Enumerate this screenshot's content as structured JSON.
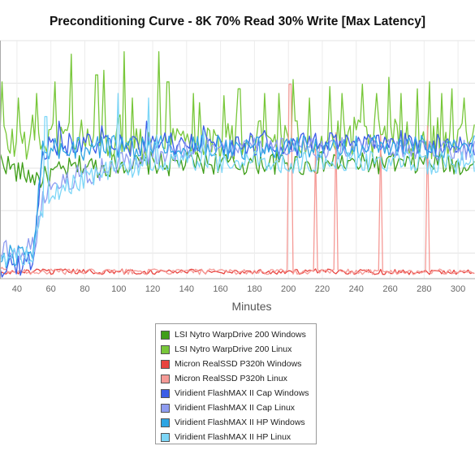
{
  "chart_data": {
    "type": "line",
    "title": "Preconditioning Curve - 8K 70% Read 30% Write [Max Latency]",
    "xlabel": "Minutes",
    "ylabel": "",
    "xlim": [
      30,
      310
    ],
    "x_ticks": [
      "40",
      "60",
      "80",
      "100",
      "120",
      "140",
      "160",
      "180",
      "200",
      "220",
      "240",
      "260",
      "280",
      "300"
    ],
    "grid": true,
    "legend_position": "bottom-center",
    "series": [
      {
        "name": "LSI Nytro WarpDrive 200 Windows",
        "color": "#3f9e18",
        "x": [
          30,
          40,
          50,
          55,
          60,
          70,
          80,
          90,
          100,
          110,
          120,
          130,
          140,
          150,
          160,
          170,
          180,
          190,
          200,
          210,
          220,
          230,
          240,
          250,
          260,
          270,
          280,
          290,
          300,
          308
        ],
        "values": [
          0.52,
          0.46,
          0.44,
          0.43,
          0.45,
          0.47,
          0.49,
          0.48,
          0.5,
          0.49,
          0.5,
          0.49,
          0.5,
          0.5,
          0.5,
          0.49,
          0.5,
          0.5,
          0.5,
          0.49,
          0.5,
          0.5,
          0.49,
          0.5,
          0.5,
          0.49,
          0.5,
          0.5,
          0.49,
          0.5
        ]
      },
      {
        "name": "LSI Nytro WarpDrive 200 Linux",
        "color": "#78c73a",
        "x": [
          30,
          40,
          50,
          55,
          60,
          70,
          80,
          90,
          100,
          110,
          120,
          130,
          140,
          150,
          160,
          170,
          180,
          190,
          200,
          210,
          220,
          230,
          240,
          250,
          260,
          270,
          280,
          290,
          300,
          308
        ],
        "values": [
          0.6,
          0.58,
          0.62,
          0.6,
          0.6,
          0.62,
          0.61,
          0.6,
          0.62,
          0.61,
          0.6,
          0.61,
          0.6,
          0.61,
          0.6,
          0.6,
          0.61,
          0.6,
          0.6,
          0.61,
          0.6,
          0.6,
          0.61,
          0.6,
          0.6,
          0.61,
          0.6,
          0.61,
          0.6,
          0.6
        ]
      },
      {
        "name": "Micron RealSSD P320h Windows",
        "color": "#e8433e",
        "x": [
          30,
          40,
          50,
          55,
          60,
          70,
          80,
          90,
          100,
          110,
          120,
          130,
          140,
          150,
          160,
          170,
          180,
          190,
          200,
          210,
          220,
          230,
          240,
          250,
          260,
          270,
          280,
          290,
          300,
          308
        ],
        "values": [
          0.02,
          0.03,
          0.03,
          0.03,
          0.03,
          0.03,
          0.03,
          0.03,
          0.03,
          0.03,
          0.03,
          0.03,
          0.03,
          0.03,
          0.03,
          0.03,
          0.03,
          0.03,
          0.03,
          0.03,
          0.03,
          0.03,
          0.03,
          0.03,
          0.03,
          0.03,
          0.03,
          0.03,
          0.03,
          0.03
        ]
      },
      {
        "name": "Micron RealSSD P320h Linux",
        "color": "#f59a96",
        "x": [
          30,
          40,
          50,
          55,
          60,
          70,
          80,
          90,
          100,
          110,
          120,
          130,
          140,
          150,
          160,
          170,
          180,
          190,
          200,
          210,
          220,
          230,
          240,
          250,
          260,
          270,
          280,
          290,
          300,
          308
        ],
        "values": [
          0.04,
          0.03,
          0.03,
          0.03,
          0.03,
          0.03,
          0.03,
          0.03,
          0.03,
          0.03,
          0.03,
          0.03,
          0.03,
          0.03,
          0.03,
          0.03,
          0.03,
          0.03,
          0.03,
          0.03,
          0.03,
          0.03,
          0.03,
          0.03,
          0.03,
          0.03,
          0.03,
          0.03,
          0.03,
          0.03
        ]
      },
      {
        "name": "Viridient FlashMAX II Cap Windows",
        "color": "#3b5de7",
        "x": [
          30,
          40,
          50,
          55,
          60,
          70,
          80,
          90,
          100,
          110,
          120,
          130,
          140,
          150,
          160,
          170,
          180,
          190,
          200,
          210,
          220,
          230,
          240,
          250,
          260,
          270,
          280,
          290,
          300,
          308
        ],
        "values": [
          0.05,
          0.06,
          0.08,
          0.55,
          0.58,
          0.58,
          0.58,
          0.58,
          0.57,
          0.58,
          0.58,
          0.58,
          0.58,
          0.58,
          0.58,
          0.58,
          0.58,
          0.58,
          0.58,
          0.58,
          0.58,
          0.58,
          0.58,
          0.58,
          0.58,
          0.58,
          0.58,
          0.58,
          0.58,
          0.58
        ]
      },
      {
        "name": "Viridient FlashMAX II Cap Linux",
        "color": "#8f9cf0",
        "x": [
          30,
          40,
          50,
          55,
          60,
          70,
          80,
          90,
          100,
          110,
          120,
          130,
          140,
          150,
          160,
          170,
          180,
          190,
          200,
          210,
          220,
          230,
          240,
          250,
          260,
          270,
          280,
          290,
          300,
          308
        ],
        "values": [
          0.12,
          0.13,
          0.14,
          0.35,
          0.4,
          0.43,
          0.45,
          0.47,
          0.5,
          0.52,
          0.54,
          0.55,
          0.56,
          0.56,
          0.56,
          0.56,
          0.56,
          0.56,
          0.56,
          0.56,
          0.56,
          0.56,
          0.56,
          0.56,
          0.56,
          0.56,
          0.56,
          0.56,
          0.56,
          0.56
        ]
      },
      {
        "name": "Viridient FlashMAX II HP Windows",
        "color": "#2ea5e3",
        "x": [
          30,
          40,
          50,
          55,
          60,
          70,
          80,
          90,
          100,
          110,
          120,
          130,
          140,
          150,
          160,
          170,
          180,
          190,
          200,
          210,
          220,
          230,
          240,
          250,
          260,
          270,
          280,
          290,
          300,
          308
        ],
        "values": [
          0.09,
          0.1,
          0.12,
          0.56,
          0.56,
          0.57,
          0.56,
          0.57,
          0.57,
          0.56,
          0.57,
          0.57,
          0.56,
          0.57,
          0.57,
          0.56,
          0.57,
          0.57,
          0.56,
          0.57,
          0.57,
          0.56,
          0.57,
          0.57,
          0.56,
          0.57,
          0.57,
          0.56,
          0.57,
          0.57
        ]
      },
      {
        "name": "Viridient FlashMAX II HP Linux",
        "color": "#7dd6f7",
        "x": [
          30,
          40,
          50,
          55,
          60,
          70,
          80,
          90,
          100,
          110,
          120,
          130,
          140,
          150,
          160,
          170,
          180,
          190,
          200,
          210,
          220,
          230,
          240,
          250,
          260,
          270,
          280,
          290,
          300,
          308
        ],
        "values": [
          0.1,
          0.1,
          0.11,
          0.3,
          0.36,
          0.4,
          0.43,
          0.45,
          0.47,
          0.48,
          0.5,
          0.5,
          0.51,
          0.5,
          0.5,
          0.5,
          0.51,
          0.5,
          0.5,
          0.5,
          0.5,
          0.5,
          0.5,
          0.51,
          0.5,
          0.5,
          0.5,
          0.5,
          0.5,
          0.5
        ]
      }
    ],
    "spikes": [
      {
        "series": 1,
        "x": [
          31,
          41,
          52,
          62,
          72,
          87,
          91,
          103,
          108,
          124,
          129,
          144,
          148,
          162,
          171,
          186,
          194,
          203,
          212,
          224,
          232,
          244,
          252,
          259,
          266,
          276,
          283,
          290,
          296,
          304
        ],
        "values": [
          0.85,
          0.78,
          0.8,
          0.85,
          0.97,
          0.88,
          0.9,
          0.98,
          0.78,
          0.98,
          0.85,
          0.8,
          0.76,
          0.79,
          0.82,
          0.8,
          0.8,
          0.86,
          0.78,
          0.83,
          0.8,
          0.84,
          0.8,
          0.87,
          0.8,
          0.82,
          0.85,
          0.8,
          0.82,
          0.78
        ]
      },
      {
        "series": 3,
        "x": [
          201,
          216,
          228,
          254,
          282
        ],
        "values": [
          0.84,
          0.56,
          0.63,
          0.62,
          0.66
        ]
      },
      {
        "series": 4,
        "x": [
          65,
          90,
          116,
          150,
          186,
          224,
          266
        ],
        "values": [
          0.68,
          0.66,
          0.68,
          0.66,
          0.64,
          0.63,
          0.64
        ]
      },
      {
        "series": 7,
        "x": [
          57,
          100,
          118,
          122,
          150
        ],
        "values": [
          0.7,
          0.8,
          0.78,
          0.62,
          0.64
        ]
      }
    ]
  },
  "legend": {
    "items": [
      {
        "label": "LSI Nytro WarpDrive 200 Windows",
        "color": "#3f9e18"
      },
      {
        "label": "LSI Nytro WarpDrive 200 Linux",
        "color": "#78c73a"
      },
      {
        "label": "Micron RealSSD P320h Windows",
        "color": "#e8433e"
      },
      {
        "label": "Micron RealSSD P320h Linux",
        "color": "#f59a96"
      },
      {
        "label": "Viridient FlashMAX II Cap Windows",
        "color": "#3b5de7"
      },
      {
        "label": "Viridient FlashMAX II Cap Linux",
        "color": "#8f9cf0"
      },
      {
        "label": "Viridient FlashMAX II HP Windows",
        "color": "#2ea5e3"
      },
      {
        "label": "Viridient FlashMAX II HP Linux",
        "color": "#7dd6f7"
      }
    ]
  }
}
